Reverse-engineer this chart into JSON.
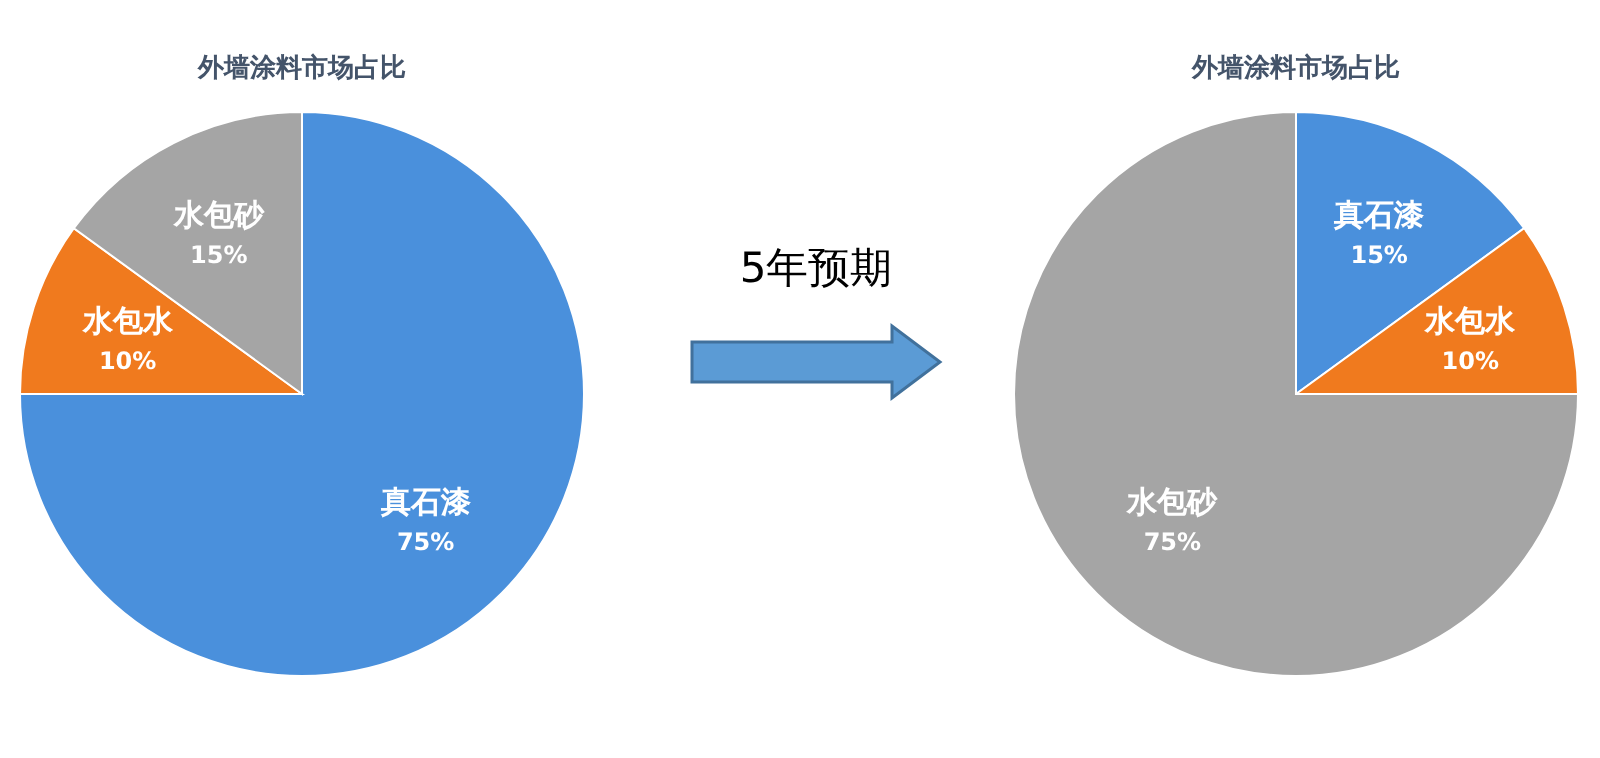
{
  "chart_data": [
    {
      "type": "pie",
      "title": "外墙涂料市场占比",
      "categories": [
        "真石漆",
        "水包水",
        "水包砂"
      ],
      "values": [
        75,
        10,
        15
      ],
      "value_labels": [
        "75%",
        "10%",
        "15%"
      ],
      "colors": [
        "#4a90dc",
        "#f07a1e",
        "#a5a5a5"
      ],
      "annotations": [
        "5年预期"
      ]
    },
    {
      "type": "pie",
      "title": "外墙涂料市场占比",
      "categories": [
        "真石漆",
        "水包水",
        "水包砂"
      ],
      "values": [
        15,
        10,
        75
      ],
      "value_labels": [
        "15%",
        "10%",
        "75%"
      ],
      "colors": [
        "#4a90dc",
        "#f07a1e",
        "#a5a5a5"
      ]
    }
  ]
}
